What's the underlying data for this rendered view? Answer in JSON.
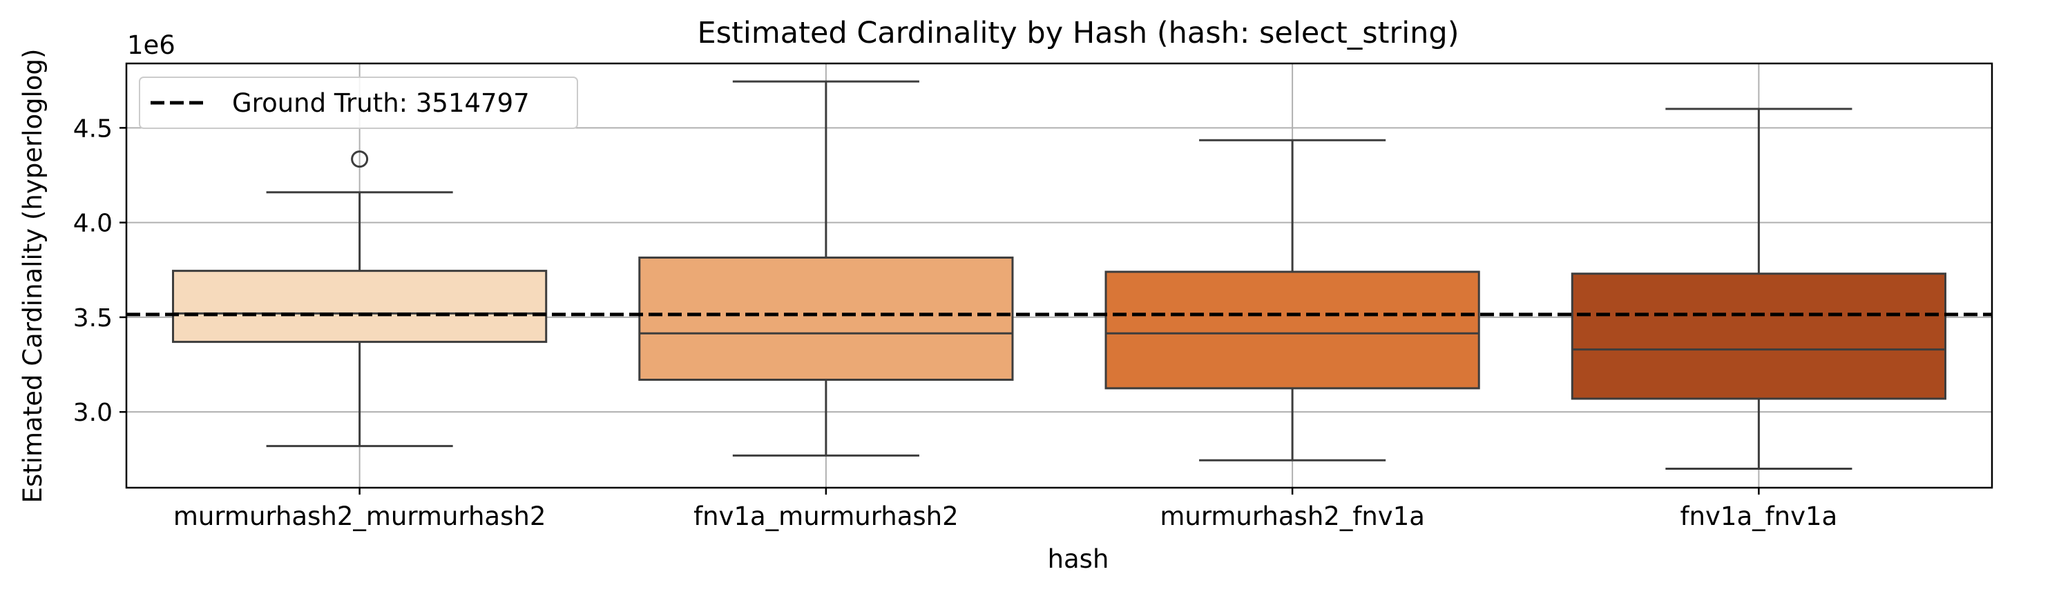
{
  "chart_data": {
    "type": "box",
    "title": "Estimated Cardinality by Hash (hash: select_string)",
    "xlabel": "hash",
    "ylabel": "Estimated Cardinality (hyperloglog)",
    "y_offset_text": "1e6",
    "y_scale_factor": 1000000,
    "ylim": [
      2.6,
      4.84
    ],
    "yticks": [
      3.0,
      3.5,
      4.0,
      4.5
    ],
    "ytick_labels": [
      "3.0",
      "3.5",
      "4.0",
      "4.5"
    ],
    "grid": true,
    "legend": {
      "position": "top-left",
      "entries": [
        "Ground Truth: 3514797"
      ]
    },
    "reference_line": {
      "label": "Ground Truth: 3514797",
      "value": 3.514797,
      "style": "dashed",
      "color": "#000000"
    },
    "categories": [
      "murmurhash2_murmurhash2",
      "fnv1a_murmurhash2",
      "murmurhash2_fnv1a",
      "fnv1a_fnv1a"
    ],
    "boxes": [
      {
        "category": "murmurhash2_murmurhash2",
        "whisker_low": 2.82,
        "q1": 3.37,
        "median": 3.52,
        "q3": 3.745,
        "whisker_high": 4.16,
        "outliers": [
          4.335
        ],
        "color": "#f6dabc"
      },
      {
        "category": "fnv1a_murmurhash2",
        "whisker_low": 2.77,
        "q1": 3.17,
        "median": 3.415,
        "q3": 3.815,
        "whisker_high": 4.745,
        "outliers": [],
        "color": "#eba975"
      },
      {
        "category": "murmurhash2_fnv1a",
        "whisker_low": 2.745,
        "q1": 3.125,
        "median": 3.415,
        "q3": 3.74,
        "whisker_high": 4.435,
        "outliers": [],
        "color": "#d97637"
      },
      {
        "category": "fnv1a_fnv1a",
        "whisker_low": 2.7,
        "q1": 3.07,
        "median": 3.33,
        "q3": 3.73,
        "whisker_high": 4.6,
        "outliers": [],
        "color": "#aa4a1e"
      }
    ]
  }
}
